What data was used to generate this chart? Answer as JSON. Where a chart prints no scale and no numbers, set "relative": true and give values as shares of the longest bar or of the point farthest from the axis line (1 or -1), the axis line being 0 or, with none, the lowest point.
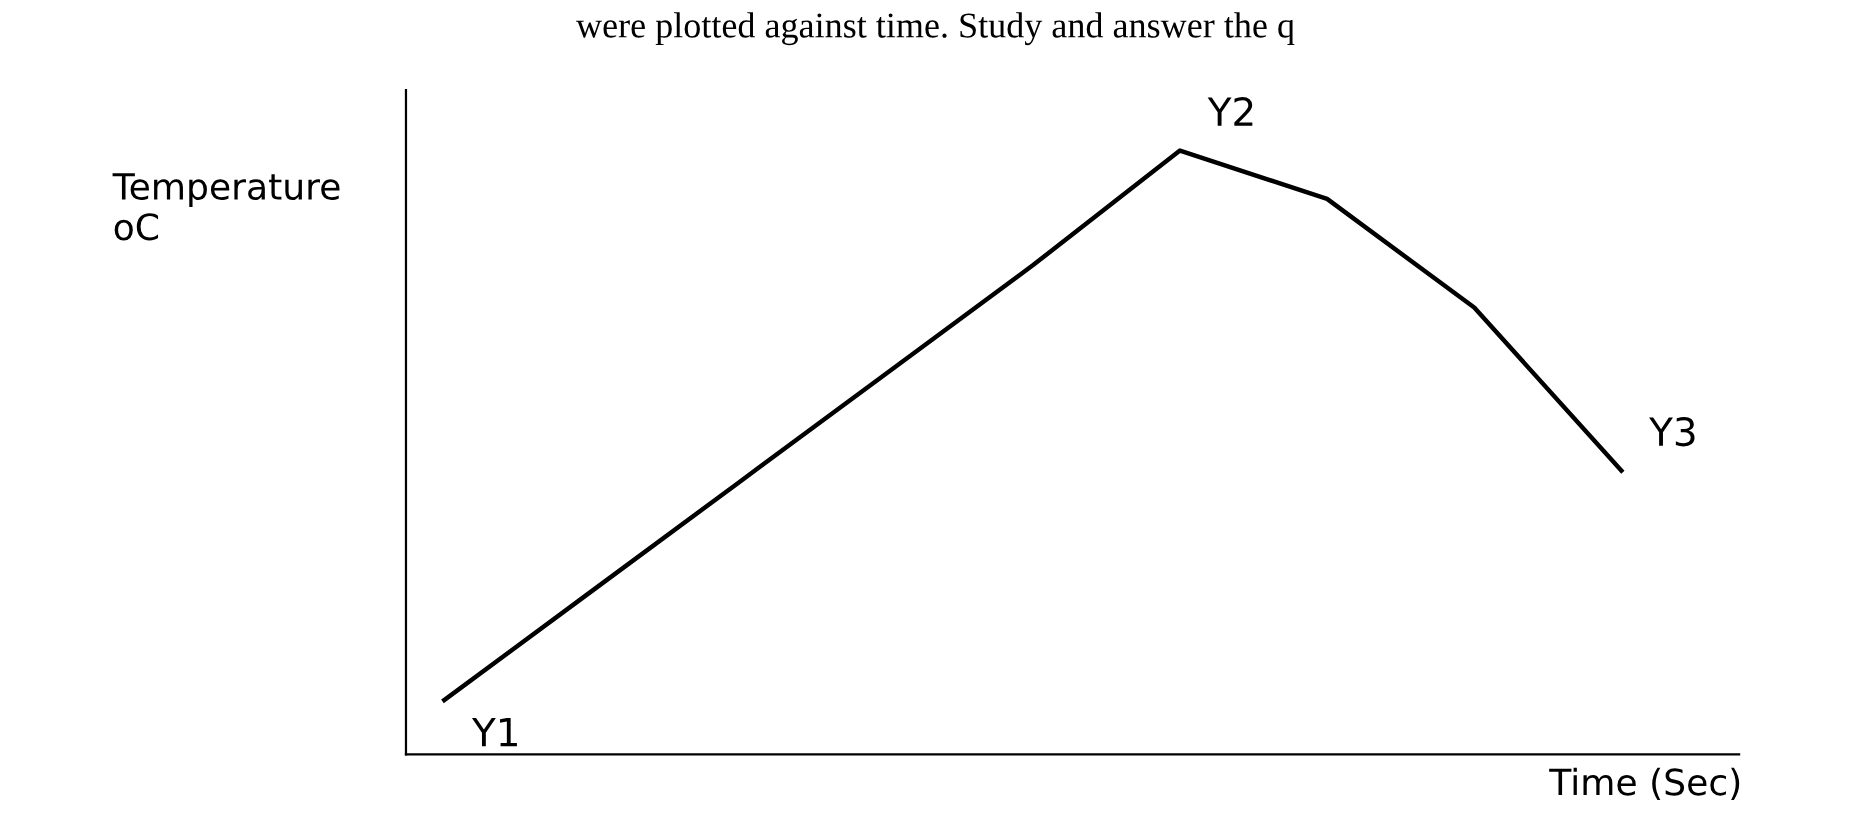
{
  "chart_data": {
    "type": "line",
    "relative": true,
    "xlabel": "Time (Sec)",
    "ylabel": "Temperature\noC",
    "annotations": [
      "were plotted against time. Study and answer the q",
      "Y1",
      "Y2",
      "Y3"
    ],
    "categories": [
      null,
      null,
      null,
      null,
      null,
      null,
      null,
      null,
      null
    ],
    "series": [
      {
        "color": "#000000",
        "values": [
          0.09,
          0.27,
          0.45,
          0.63,
          0.81,
          1,
          0.92,
          0.74,
          0.47
        ]
      }
    ],
    "grid": false,
    "legend": false,
    "marker": "none",
    "line_style": "solid"
  }
}
